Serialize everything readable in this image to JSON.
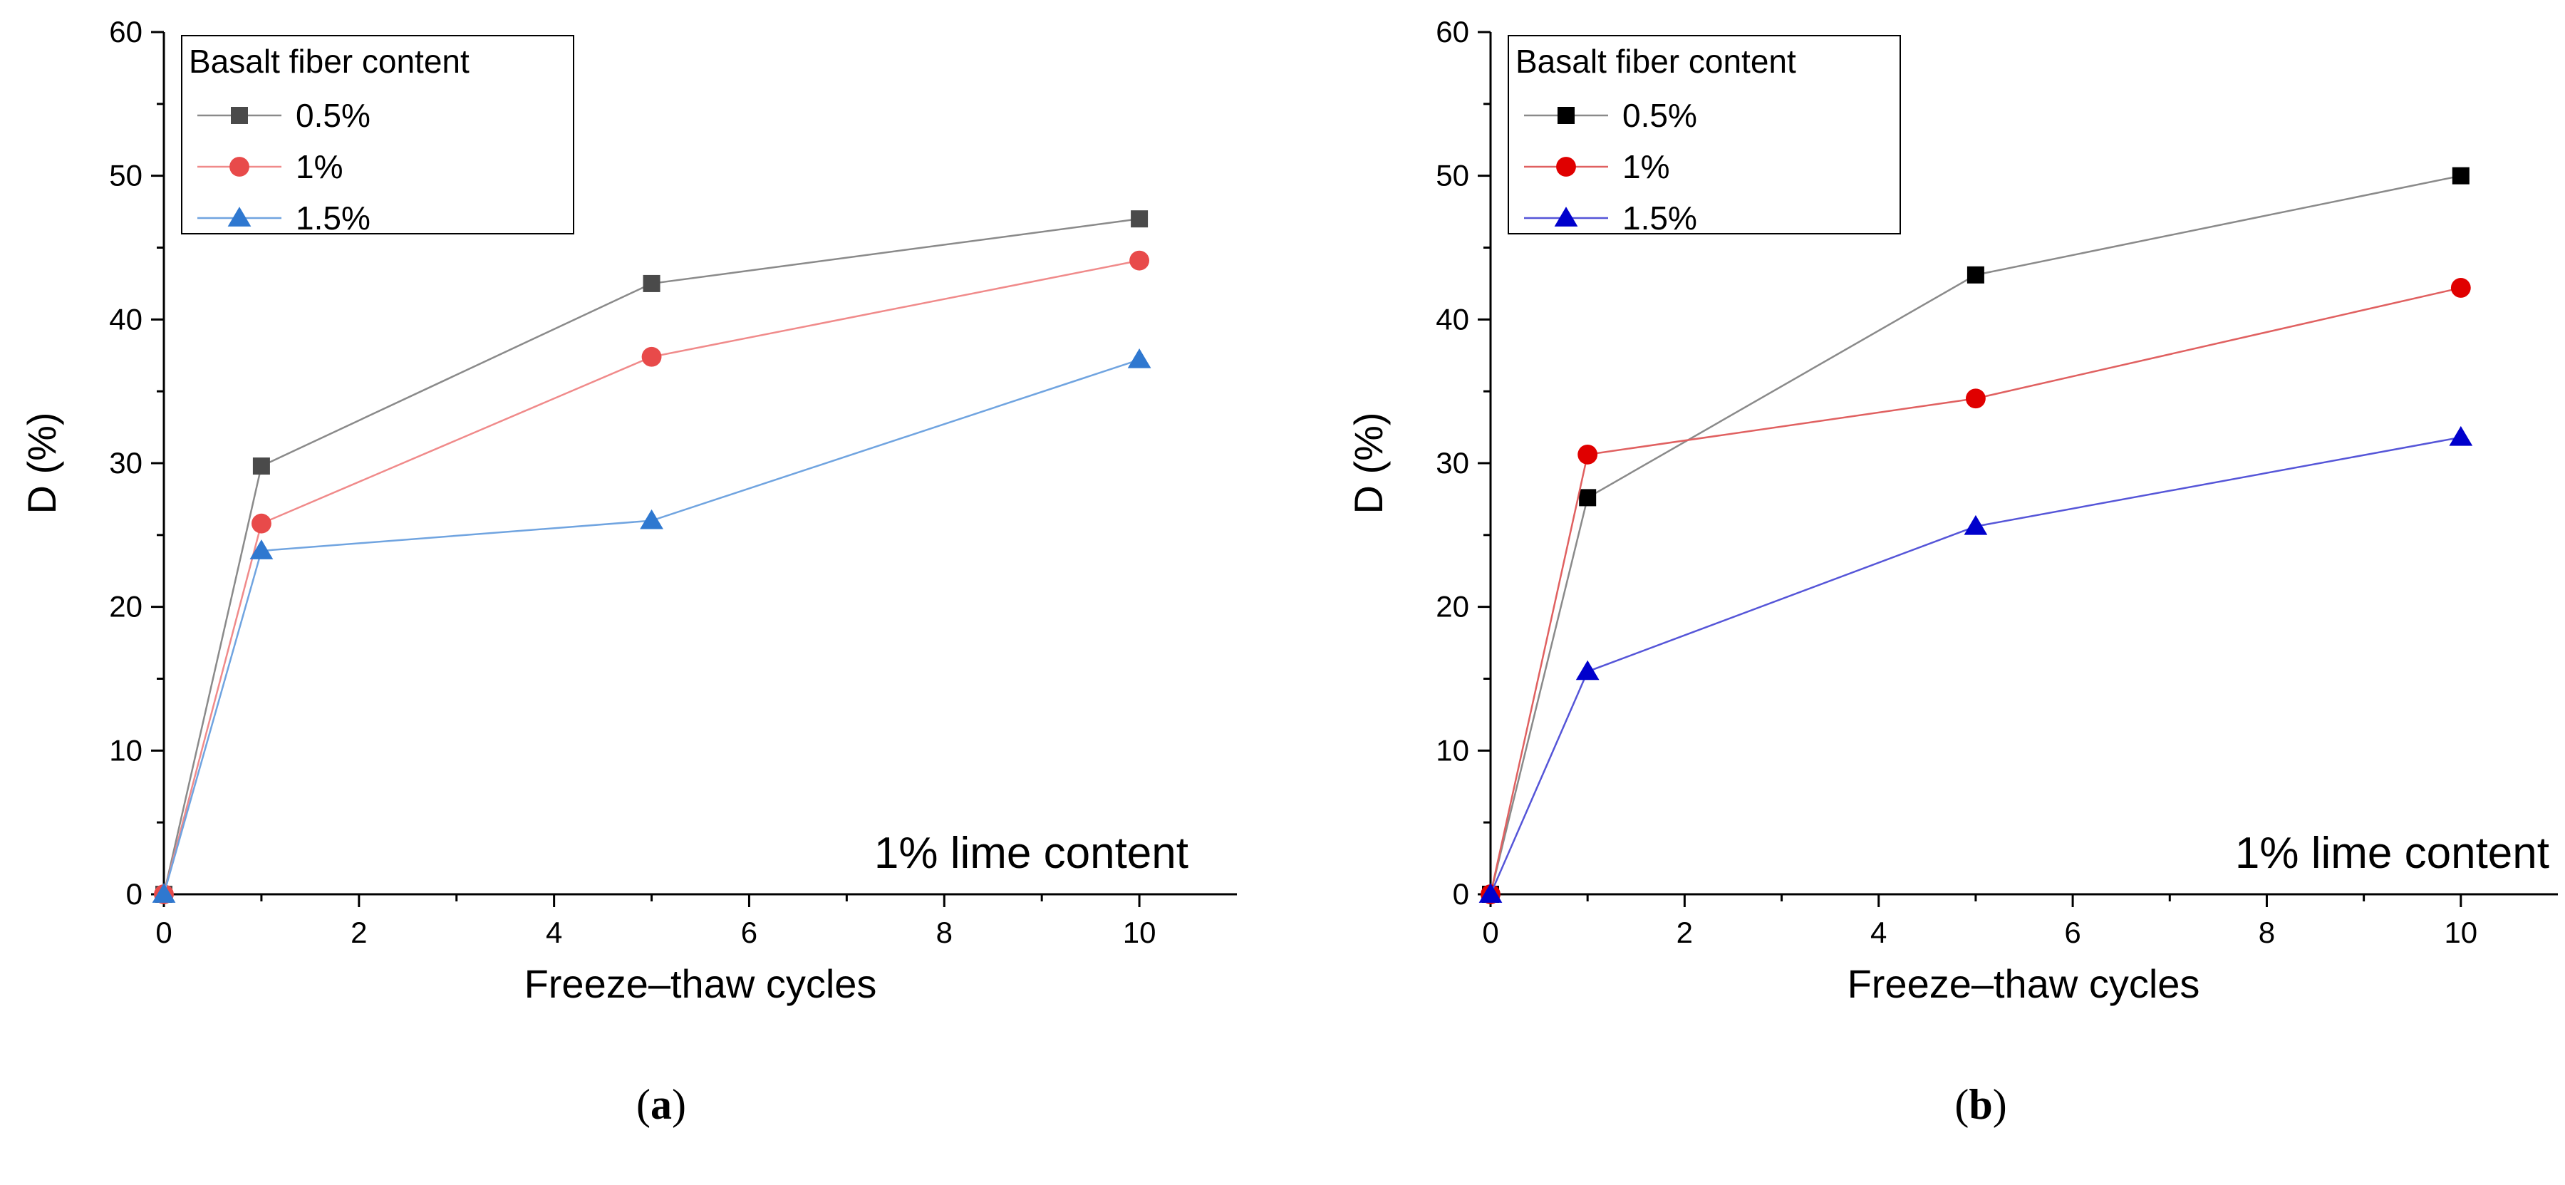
{
  "chart_data": [
    {
      "type": "line",
      "panel_label": "a",
      "xlabel": "Freeze–thaw cycles",
      "ylabel": "D (%)",
      "xlim": [
        0,
        11
      ],
      "ylim": [
        0,
        60
      ],
      "xticks": [
        0,
        2,
        4,
        6,
        8,
        10
      ],
      "yticks": [
        0,
        10,
        20,
        30,
        40,
        50,
        60
      ],
      "annotation": "1% lime content",
      "legend_title": "Basalt fiber content",
      "legend_position": "top-left",
      "x": [
        0,
        1,
        5,
        10
      ],
      "series": [
        {
          "name": "0.5%",
          "values": [
            0,
            29.8,
            42.5,
            47.0
          ],
          "marker": "square",
          "color": "#4a4a4a",
          "line_color": "#8a8a8a"
        },
        {
          "name": "1%",
          "values": [
            0,
            25.8,
            37.4,
            44.1
          ],
          "marker": "circle",
          "color": "#e84a4a",
          "line_color": "#f08a8a"
        },
        {
          "name": "1.5%",
          "values": [
            0,
            23.9,
            26.0,
            37.2
          ],
          "marker": "triangle",
          "color": "#2f78d0",
          "line_color": "#70a4e0"
        }
      ]
    },
    {
      "type": "line",
      "panel_label": "b",
      "xlabel": "Freeze–thaw cycles",
      "ylabel": "D (%)",
      "xlim": [
        0,
        11
      ],
      "ylim": [
        0,
        60
      ],
      "xticks": [
        0,
        2,
        4,
        6,
        8,
        10
      ],
      "yticks": [
        0,
        10,
        20,
        30,
        40,
        50,
        60
      ],
      "annotation": "1% lime content",
      "legend_title": "Basalt fiber content",
      "legend_position": "top-left",
      "x": [
        0,
        1,
        5,
        10
      ],
      "series": [
        {
          "name": "0.5%",
          "values": [
            0,
            27.6,
            43.1,
            50.0
          ],
          "marker": "square",
          "color": "#000000",
          "line_color": "#8a8a8a"
        },
        {
          "name": "1%",
          "values": [
            0,
            30.6,
            34.5,
            42.2
          ],
          "marker": "circle",
          "color": "#e00000",
          "line_color": "#e06060"
        },
        {
          "name": "1.5%",
          "values": [
            0,
            15.5,
            25.6,
            31.8
          ],
          "marker": "triangle",
          "color": "#0000cc",
          "line_color": "#5555d8"
        }
      ]
    }
  ]
}
